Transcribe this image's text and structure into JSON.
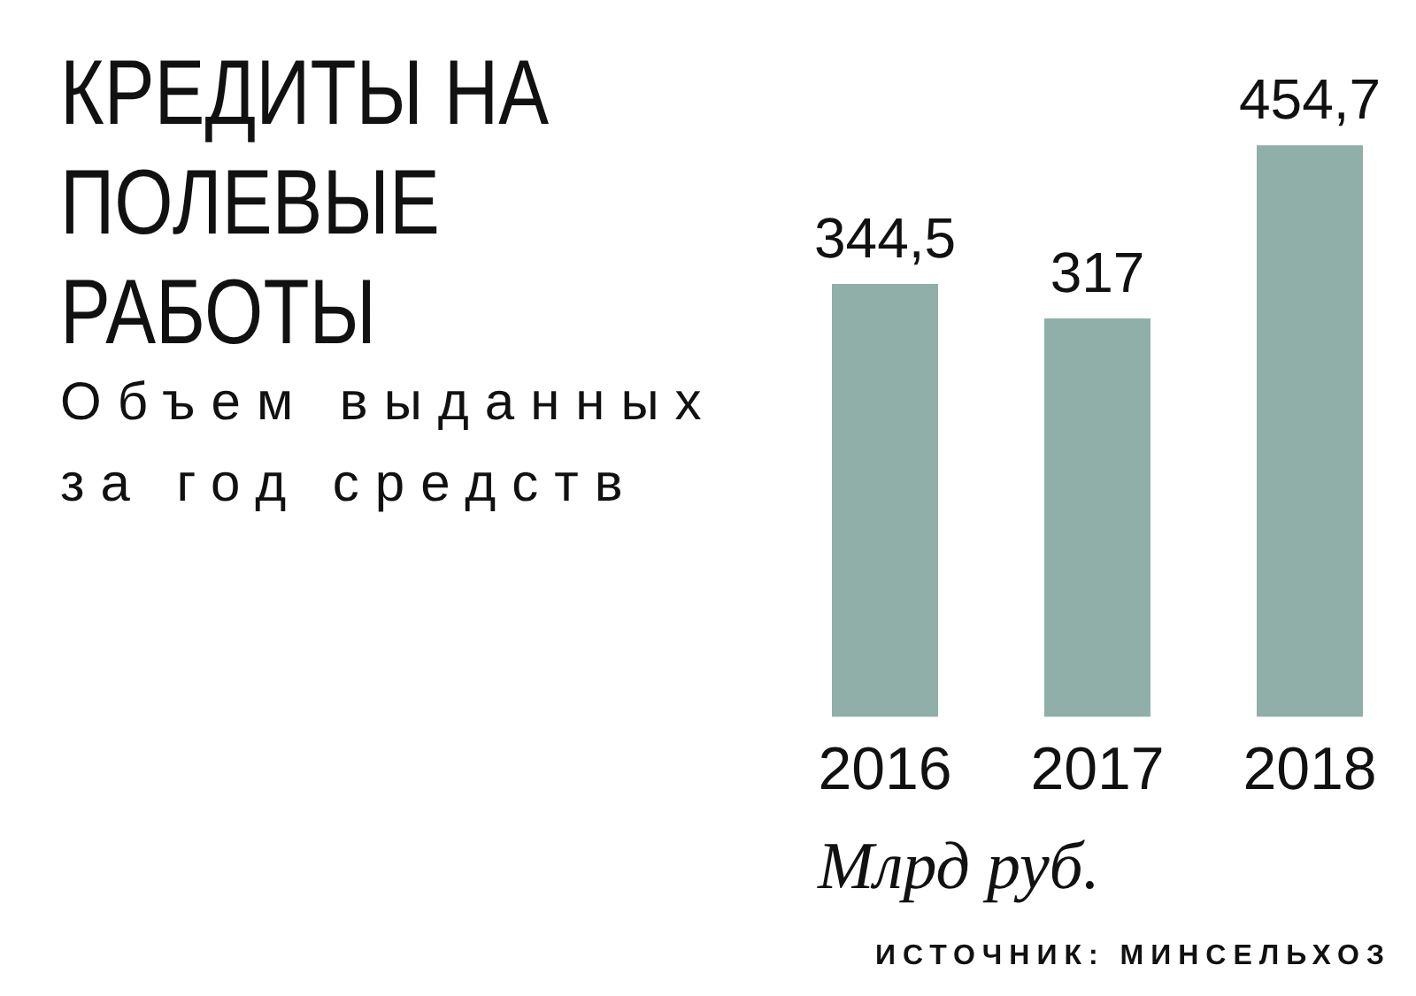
{
  "chart_data": {
    "type": "bar",
    "title": "КРЕДИТЫ НА ПОЛЕВЫЕ РАБОТЫ",
    "subtitle": "Объем выданных за год средств",
    "categories": [
      "2016",
      "2017",
      "2018"
    ],
    "values": [
      344.5,
      317,
      454.7
    ],
    "value_labels": [
      "344,5",
      "317",
      "454,7"
    ],
    "color": "#8fafa8",
    "annotations": [
      "Млрд руб.",
      "ИСТОЧНИК: МИНСЕЛЬХОЗ"
    ]
  }
}
